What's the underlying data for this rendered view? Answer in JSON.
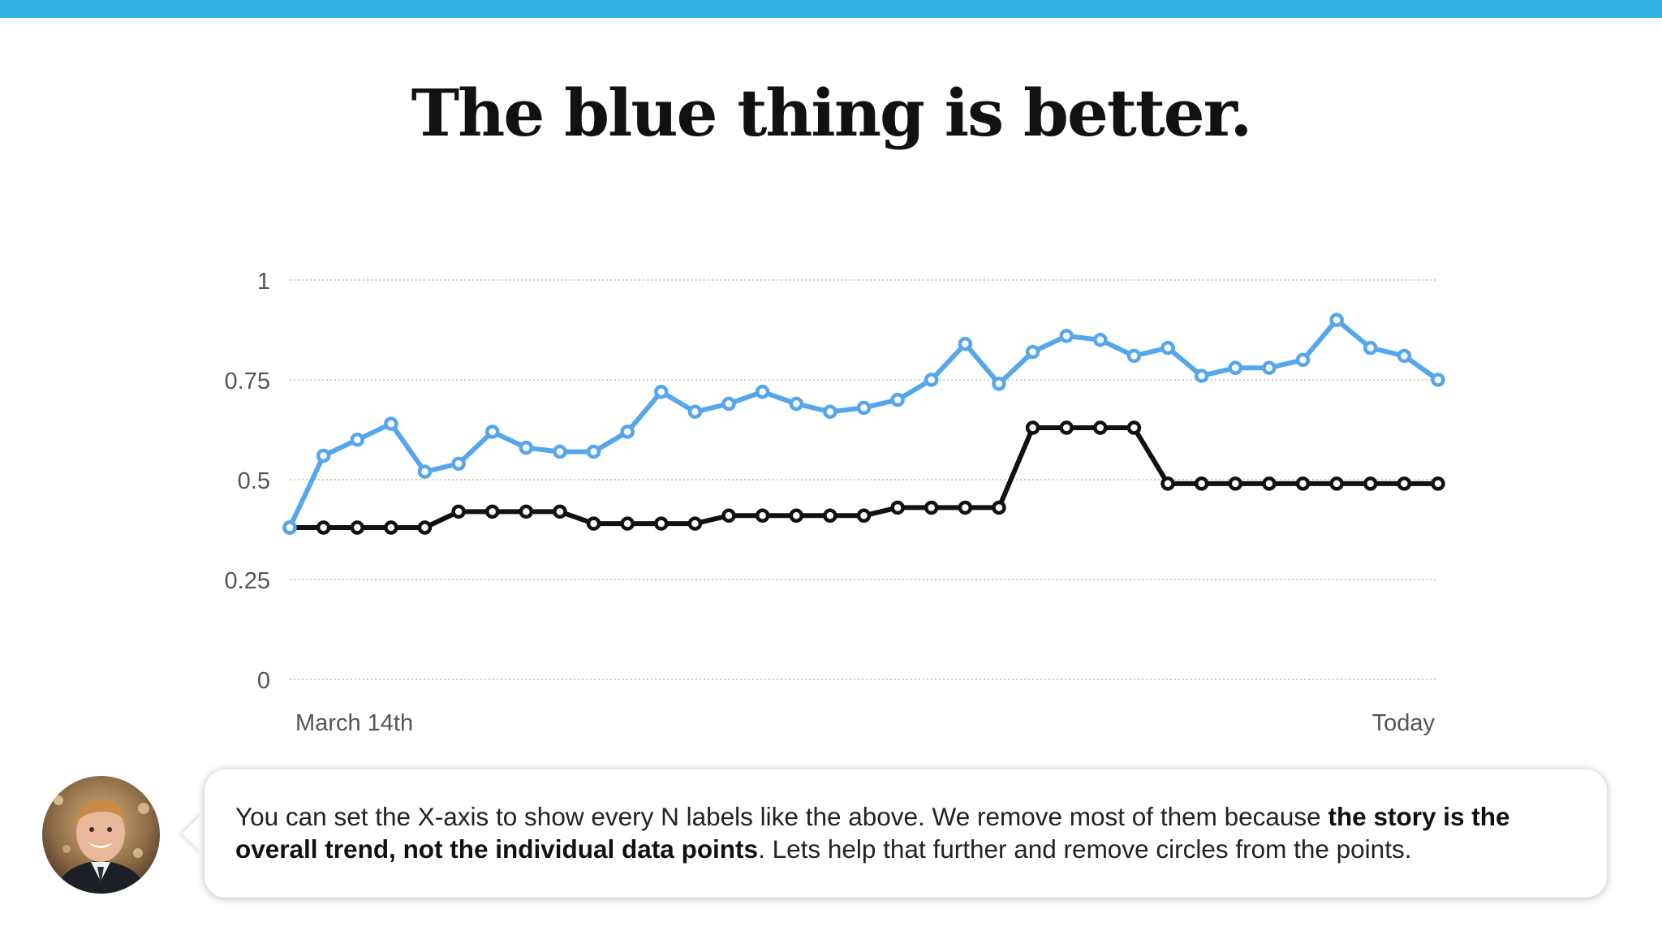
{
  "slide": {
    "title": "The blue thing is better.",
    "accent_color": "#33b0e6"
  },
  "caption": {
    "part1": "You can set the X-axis to show every N labels like the above. We remove most of them because ",
    "bold": "the story is the overall trend, not the individual data points",
    "part2": ". Lets help that further and remove circles from the points."
  },
  "avatar": {
    "icon": "presenter-avatar-icon"
  },
  "chart_data": {
    "type": "line",
    "title": "",
    "xlabel": "",
    "ylabel": "",
    "ylim": [
      0,
      1
    ],
    "yticks": [
      "0",
      "0.25",
      "0.5",
      "0.75",
      "1"
    ],
    "x_labels": {
      "first": "March 14th",
      "last": "Today"
    },
    "grid": true,
    "legend": "none",
    "markers": "circle",
    "series": [
      {
        "color": "#56a6ec",
        "values": [
          0.38,
          0.56,
          0.6,
          0.64,
          0.52,
          0.54,
          0.62,
          0.58,
          0.57,
          0.57,
          0.62,
          0.72,
          0.67,
          0.69,
          0.72,
          0.69,
          0.67,
          0.68,
          0.7,
          0.75,
          0.84,
          0.74,
          0.82,
          0.86,
          0.85,
          0.81,
          0.83,
          0.76,
          0.78,
          0.78,
          0.8,
          0.9,
          0.83,
          0.81,
          0.75
        ]
      },
      {
        "color": "#111111",
        "values": [
          0.38,
          0.38,
          0.38,
          0.38,
          0.38,
          0.42,
          0.42,
          0.42,
          0.42,
          0.39,
          0.39,
          0.39,
          0.39,
          0.41,
          0.41,
          0.41,
          0.41,
          0.41,
          0.43,
          0.43,
          0.43,
          0.43,
          0.63,
          0.63,
          0.63,
          0.63,
          0.49,
          0.49,
          0.49,
          0.49,
          0.49,
          0.49,
          0.49,
          0.49,
          0.49
        ]
      }
    ]
  }
}
